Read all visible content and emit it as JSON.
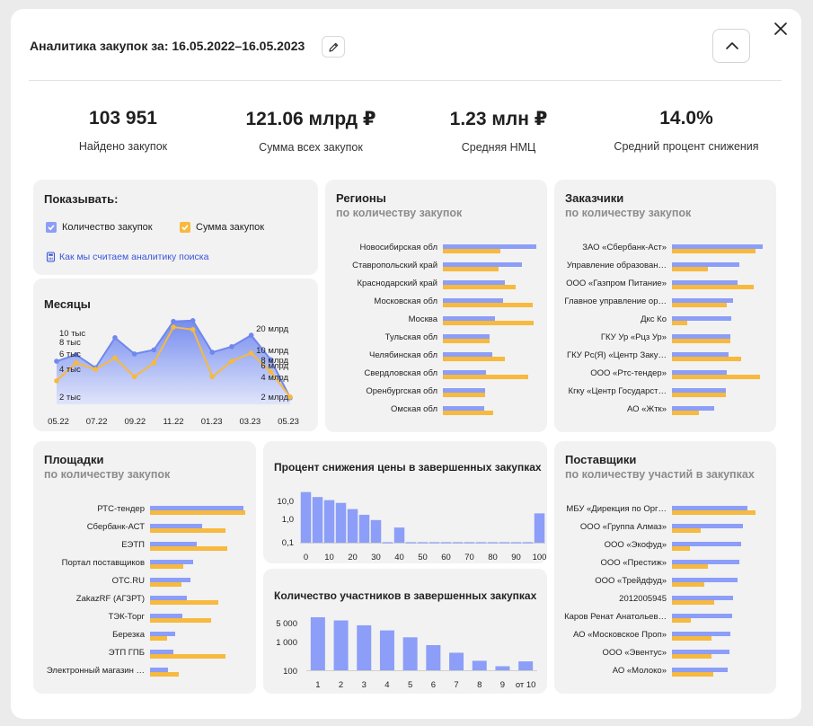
{
  "header": {
    "title": "Аналитика закупок за: 16.05.2022–16.05.2023"
  },
  "kpis": [
    {
      "value": "103 951",
      "label": "Найдено закупок"
    },
    {
      "value": "121.06 млрд ₽",
      "label": "Сумма всех закупок"
    },
    {
      "value": "1.23 млн ₽",
      "label": "Средняя НМЦ"
    },
    {
      "value": "14.0%",
      "label": "Средний процент снижения"
    }
  ],
  "filters": {
    "title": "Показывать:",
    "count_label": "Количество закупок",
    "sum_label": "Сумма закупок",
    "count_checked": true,
    "sum_checked": true,
    "link": "Как мы считаем аналитику поиска"
  },
  "colors": {
    "count": "#8c9ef7",
    "sum": "#f7b93e",
    "link": "#3b55d9",
    "card": "#f2f2f2"
  },
  "months": {
    "title": "Месяцы",
    "chart_data": {
      "type": "area",
      "x_ticks": [
        "05.22",
        "07.22",
        "09.22",
        "11.22",
        "01.23",
        "03.23",
        "05.23"
      ],
      "series": [
        {
          "values": [
            6800,
            7600,
            6000,
            9700,
            7700,
            8200,
            11700,
            11800,
            7900,
            8600,
            10000,
            7000,
            2300
          ]
        },
        {
          "values": [
            4400,
            6600,
            5800,
            7200,
            4900,
            6600,
            11000,
            10700,
            4900,
            6800,
            7800,
            5500,
            2400
          ]
        }
      ],
      "left_axis_ticks": [
        "10 тыс",
        "8 тыс",
        "6 тыс",
        "4 тыс",
        "2 тыс"
      ],
      "right_axis_ticks": [
        "20 млрд",
        "10 млрд",
        "8 млрд",
        "6 млрд",
        "4 млрд",
        "2 млрд"
      ]
    }
  },
  "regions": {
    "title": "Регионы",
    "subtitle": "по количеству закупок",
    "items": [
      {
        "label": "Новосибирская обл",
        "count": 100,
        "sum": 62
      },
      {
        "label": "Ставропольский край",
        "count": 85,
        "sum": 60
      },
      {
        "label": "Краснодарский край",
        "count": 66,
        "sum": 78
      },
      {
        "label": "Московская обл",
        "count": 64,
        "sum": 96
      },
      {
        "label": "Москва",
        "count": 56,
        "sum": 97
      },
      {
        "label": "Тульская обл",
        "count": 50,
        "sum": 50
      },
      {
        "label": "Челябинская обл",
        "count": 53,
        "sum": 66
      },
      {
        "label": "Свердловская обл",
        "count": 46,
        "sum": 91
      },
      {
        "label": "Оренбургская обл",
        "count": 45,
        "sum": 45
      },
      {
        "label": "Омская обл",
        "count": 44,
        "sum": 54
      }
    ]
  },
  "customers": {
    "title": "Заказчики",
    "subtitle": "по количеству закупок",
    "items": [
      {
        "label": "ЗАО «Сбербанк-Аст»",
        "count": 100,
        "sum": 92
      },
      {
        "label": "Управление образован…",
        "count": 74,
        "sum": 40
      },
      {
        "label": "ООО «Газпром Питание»",
        "count": 72,
        "sum": 90
      },
      {
        "label": "Главное управление ор…",
        "count": 67,
        "sum": 60
      },
      {
        "label": "Дкс Ко",
        "count": 65,
        "sum": 17
      },
      {
        "label": "ГКУ Ур «Рцз Ур»",
        "count": 64,
        "sum": 64
      },
      {
        "label": "ГКУ Рс(Я) «Центр Заку…",
        "count": 62,
        "sum": 76
      },
      {
        "label": "ООО «Ртс-тендер»",
        "count": 60,
        "sum": 97
      },
      {
        "label": "Кгку «Центр Государст…",
        "count": 59,
        "sum": 59
      },
      {
        "label": "АО «Жтк»",
        "count": 47,
        "sum": 30
      }
    ]
  },
  "platforms": {
    "title": "Площадки",
    "subtitle": "по количеству закупок",
    "items": [
      {
        "label": "РТС-тендер",
        "count": 100,
        "sum": 102
      },
      {
        "label": "Сбербанк-АСТ",
        "count": 56,
        "sum": 81
      },
      {
        "label": "ЕЭТП",
        "count": 50,
        "sum": 83
      },
      {
        "label": "Портал поставщиков",
        "count": 46,
        "sum": 36
      },
      {
        "label": "OTC.RU",
        "count": 43,
        "sum": 34
      },
      {
        "label": "ZakazRF (АГЗРТ)",
        "count": 39,
        "sum": 73
      },
      {
        "label": "ТЭК-Торг",
        "count": 35,
        "sum": 65
      },
      {
        "label": "Березка",
        "count": 27,
        "sum": 18
      },
      {
        "label": "ЭТП ГПБ",
        "count": 25,
        "sum": 81
      },
      {
        "label": "Электронный магазин …",
        "count": 19,
        "sum": 31
      }
    ]
  },
  "suppliers": {
    "title": "Поставщики",
    "subtitle": "по количеству участий в закупках",
    "items": [
      {
        "label": "МБУ «Дирекция по Орг…",
        "count": 90,
        "sum": 100
      },
      {
        "label": "ООО «Группа Алмаз»",
        "count": 85,
        "sum": 34
      },
      {
        "label": "ООО «Экофуд»",
        "count": 83,
        "sum": 21
      },
      {
        "label": "ООО «Престиж»",
        "count": 81,
        "sum": 43
      },
      {
        "label": "ООО «Трейдфуд»",
        "count": 78,
        "sum": 39
      },
      {
        "label": "2012005945",
        "count": 73,
        "sum": 51
      },
      {
        "label": "Каров Ренат Анатольев…",
        "count": 72,
        "sum": 23
      },
      {
        "label": "АО «Московское Проп»",
        "count": 70,
        "sum": 47
      },
      {
        "label": "ООО «Эвентус»",
        "count": 69,
        "sum": 47
      },
      {
        "label": "АО «Молоко»",
        "count": 67,
        "sum": 49
      }
    ]
  },
  "price_drop": {
    "title": "Процент снижения цены в завершенных закупках",
    "chart_data": {
      "type": "bar",
      "categories": [
        "0",
        "5",
        "10",
        "15",
        "20",
        "25",
        "30",
        "35",
        "40",
        "45",
        "50",
        "55",
        "60",
        "65",
        "70",
        "75",
        "80",
        "85",
        "90",
        "95",
        "100"
      ],
      "values": [
        12,
        7.5,
        5.6,
        4.3,
        2.4,
        1.4,
        0.85,
        0,
        0.42,
        0,
        0,
        0,
        0,
        0,
        0,
        0,
        0,
        0,
        0,
        0,
        1.6
      ],
      "x_ticks": [
        "0",
        "10",
        "20",
        "30",
        "40",
        "50",
        "60",
        "70",
        "80",
        "90",
        "100"
      ],
      "y_ticks": [
        "10,0",
        "1,0",
        "0,1"
      ],
      "y_scale": "log"
    }
  },
  "participants": {
    "title": "Количество участников в завершенных закупках",
    "chart_data": {
      "type": "bar",
      "categories": [
        "1",
        "2",
        "3",
        "4",
        "5",
        "6",
        "7",
        "8",
        "9",
        "от 10"
      ],
      "values": [
        8200,
        6300,
        4200,
        2750,
        1550,
        810,
        430,
        220,
        140,
        210
      ],
      "y_ticks": [
        "5 000",
        "1 000",
        "100"
      ],
      "y_scale": "log"
    }
  }
}
